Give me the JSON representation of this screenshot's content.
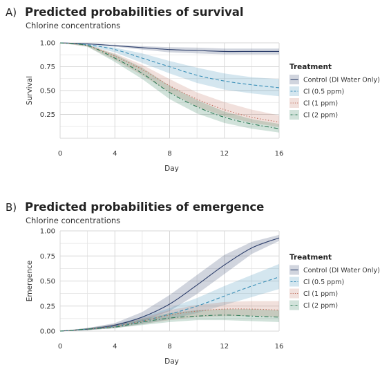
{
  "chart_data": [
    {
      "type": "line",
      "panel_label": "A)",
      "title": "Predicted probabilities of survival",
      "subtitle": "Chlorine concentrations",
      "xlabel": "Day",
      "ylabel": "Survival",
      "xlim": [
        0,
        16
      ],
      "ylim": [
        0,
        1
      ],
      "xticks": [
        "0",
        "4",
        "8",
        "12",
        "16"
      ],
      "yticks": [
        "0.25",
        "0.50",
        "0.75",
        "1.00"
      ],
      "legend_title": "Treatment",
      "legend_position": "right",
      "x": [
        0,
        2,
        4,
        6,
        8,
        10,
        12,
        14,
        16
      ],
      "series": [
        {
          "name": "Control (DI Water Only)",
          "color": "#2c3e6b",
          "dash": "solid",
          "values": [
            1.0,
            0.99,
            0.97,
            0.95,
            0.93,
            0.92,
            0.91,
            0.91,
            0.91
          ],
          "lower": [
            1.0,
            0.985,
            0.96,
            0.93,
            0.9,
            0.89,
            0.88,
            0.88,
            0.88
          ],
          "upper": [
            1.0,
            0.995,
            0.98,
            0.965,
            0.955,
            0.95,
            0.94,
            0.94,
            0.94
          ]
        },
        {
          "name": "Cl (0.5 ppm)",
          "color": "#3a8fb7",
          "dash": "dashed",
          "values": [
            1.0,
            0.98,
            0.93,
            0.84,
            0.75,
            0.66,
            0.6,
            0.56,
            0.53
          ],
          "lower": [
            1.0,
            0.97,
            0.9,
            0.79,
            0.68,
            0.58,
            0.51,
            0.47,
            0.44
          ],
          "upper": [
            1.0,
            0.99,
            0.95,
            0.89,
            0.81,
            0.74,
            0.68,
            0.64,
            0.62
          ]
        },
        {
          "name": "Cl (1 ppm)",
          "color": "#c0705f",
          "dash": "dotted",
          "values": [
            1.0,
            0.97,
            0.86,
            0.72,
            0.55,
            0.41,
            0.3,
            0.22,
            0.17
          ],
          "lower": [
            1.0,
            0.96,
            0.82,
            0.66,
            0.48,
            0.33,
            0.23,
            0.16,
            0.12
          ],
          "upper": [
            1.0,
            0.98,
            0.89,
            0.77,
            0.62,
            0.48,
            0.38,
            0.3,
            0.24
          ]
        },
        {
          "name": "Cl (2 ppm)",
          "color": "#2c7a55",
          "dash": "dashdot",
          "values": [
            1.0,
            0.97,
            0.84,
            0.68,
            0.48,
            0.33,
            0.22,
            0.15,
            0.1
          ],
          "lower": [
            1.0,
            0.96,
            0.8,
            0.62,
            0.41,
            0.26,
            0.16,
            0.1,
            0.06
          ],
          "upper": [
            1.0,
            0.98,
            0.88,
            0.74,
            0.55,
            0.4,
            0.28,
            0.2,
            0.15
          ]
        }
      ]
    },
    {
      "type": "line",
      "panel_label": "B)",
      "title": "Predicted probabilities of emergence",
      "subtitle": "Chlorine concentrations",
      "xlabel": "Day",
      "ylabel": "Emergence",
      "xlim": [
        0,
        16
      ],
      "ylim": [
        0,
        1
      ],
      "xticks": [
        "0",
        "4",
        "8",
        "12",
        "16"
      ],
      "yticks": [
        "0.00",
        "0.25",
        "0.50",
        "0.75",
        "1.00"
      ],
      "legend_title": "Treatment",
      "legend_position": "right",
      "x": [
        0,
        2,
        4,
        6,
        8,
        10,
        12,
        14,
        16
      ],
      "series": [
        {
          "name": "Control (DI Water Only)",
          "color": "#2c3e6b",
          "dash": "solid",
          "values": [
            0.0,
            0.02,
            0.06,
            0.14,
            0.27,
            0.46,
            0.66,
            0.83,
            0.93
          ],
          "lower": [
            0.0,
            0.01,
            0.04,
            0.1,
            0.2,
            0.37,
            0.57,
            0.77,
            0.9
          ],
          "upper": [
            0.0,
            0.03,
            0.08,
            0.19,
            0.36,
            0.56,
            0.76,
            0.89,
            0.96
          ]
        },
        {
          "name": "Cl (0.5 ppm)",
          "color": "#3a8fb7",
          "dash": "dashed",
          "values": [
            0.0,
            0.02,
            0.05,
            0.1,
            0.17,
            0.25,
            0.35,
            0.45,
            0.54
          ],
          "lower": [
            0.0,
            0.01,
            0.03,
            0.07,
            0.12,
            0.18,
            0.26,
            0.34,
            0.42
          ],
          "upper": [
            0.0,
            0.03,
            0.07,
            0.14,
            0.23,
            0.33,
            0.45,
            0.56,
            0.67
          ]
        },
        {
          "name": "Cl (1 ppm)",
          "color": "#c0705f",
          "dash": "dotted",
          "values": [
            0.0,
            0.02,
            0.05,
            0.1,
            0.16,
            0.2,
            0.22,
            0.22,
            0.21
          ],
          "lower": [
            0.0,
            0.01,
            0.03,
            0.07,
            0.11,
            0.14,
            0.15,
            0.15,
            0.14
          ],
          "upper": [
            0.0,
            0.03,
            0.07,
            0.13,
            0.21,
            0.26,
            0.29,
            0.3,
            0.3
          ]
        },
        {
          "name": "Cl (2 ppm)",
          "color": "#2c7a55",
          "dash": "dashdot",
          "values": [
            0.0,
            0.02,
            0.04,
            0.09,
            0.13,
            0.15,
            0.16,
            0.15,
            0.14
          ],
          "lower": [
            0.0,
            0.01,
            0.03,
            0.06,
            0.09,
            0.11,
            0.11,
            0.1,
            0.09
          ],
          "upper": [
            0.0,
            0.03,
            0.06,
            0.12,
            0.18,
            0.21,
            0.22,
            0.22,
            0.21
          ]
        }
      ]
    }
  ]
}
